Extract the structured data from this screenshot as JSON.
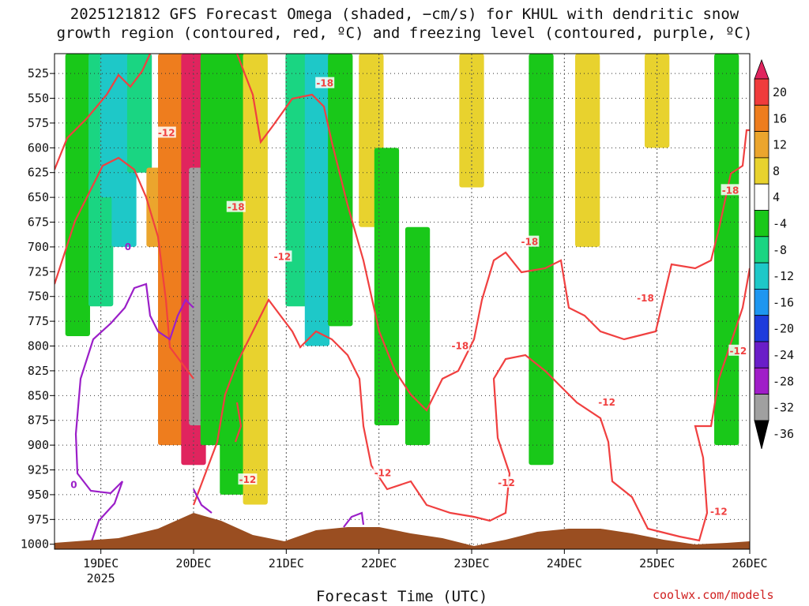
{
  "title": {
    "line1": "2025121812 GFS Forecast Omega (shaded, −cm/s) for KHUL with dendritic snow",
    "line2": "growth region (contoured, red, ºC) and freezing level (contoured, purple, ºC)"
  },
  "credit": "coolwx.com/models",
  "chart_data": {
    "type": "heatmap",
    "xlabel": "Forecast Time (UTC)",
    "ylabel": "",
    "x_ticks": [
      "19DEC",
      "20DEC",
      "21DEC",
      "22DEC",
      "23DEC",
      "24DEC",
      "25DEC",
      "26DEC"
    ],
    "x_year_label": "2025",
    "xlim": [
      "2025-12-18T12",
      "2025-12-26T00"
    ],
    "y_ticks": [
      525,
      550,
      575,
      600,
      625,
      650,
      675,
      700,
      725,
      750,
      775,
      800,
      825,
      850,
      875,
      900,
      925,
      950,
      975,
      1000
    ],
    "ylim": [
      1005,
      505
    ],
    "y_units": "hPa",
    "grid": true,
    "colorbar": {
      "levels": [
        20,
        16,
        12,
        8,
        4,
        -4,
        -8,
        -12,
        -16,
        -20,
        -24,
        -28,
        -32,
        -36
      ],
      "colors": [
        "#e0245e",
        "#f03c3c",
        "#ee7d1e",
        "#eba52d",
        "#e8d22e",
        "#ffffff",
        "#19c819",
        "#1ad582",
        "#1ec8c8",
        "#1e96f0",
        "#1e3cdc",
        "#6a1ec8",
        "#a01ec8",
        "#a0a0a0",
        "#000000"
      ]
    },
    "shading": [
      {
        "x": "2025-12-18T18",
        "p_top": 505,
        "p_bot": 790,
        "omega": -6
      },
      {
        "x": "2025-12-19T00",
        "p_top": 505,
        "p_bot": 760,
        "omega": -10
      },
      {
        "x": "2025-12-19T03",
        "p_top": 505,
        "p_bot": 650,
        "omega": -14
      },
      {
        "x": "2025-12-19T06",
        "p_top": 505,
        "p_bot": 700,
        "omega": -16
      },
      {
        "x": "2025-12-19T10",
        "p_top": 505,
        "p_bot": 625,
        "omega": -12
      },
      {
        "x": "2025-12-19T15",
        "p_top": 620,
        "p_bot": 700,
        "omega": 10
      },
      {
        "x": "2025-12-19T18",
        "p_top": 505,
        "p_bot": 900,
        "omega": 14
      },
      {
        "x": "2025-12-20T00",
        "p_top": 505,
        "p_bot": 920,
        "omega": 20
      },
      {
        "x": "2025-12-20T02",
        "p_top": 620,
        "p_bot": 880,
        "omega": -36
      },
      {
        "x": "2025-12-20T05",
        "p_top": 505,
        "p_bot": 900,
        "omega": -8
      },
      {
        "x": "2025-12-20T10",
        "p_top": 505,
        "p_bot": 950,
        "omega": -8
      },
      {
        "x": "2025-12-20T16",
        "p_top": 505,
        "p_bot": 960,
        "omega": 6
      },
      {
        "x": "2025-12-21T03",
        "p_top": 505,
        "p_bot": 760,
        "omega": -10
      },
      {
        "x": "2025-12-21T08",
        "p_top": 505,
        "p_bot": 800,
        "omega": -14
      },
      {
        "x": "2025-12-21T14",
        "p_top": 505,
        "p_bot": 780,
        "omega": -8
      },
      {
        "x": "2025-12-21T22",
        "p_top": 505,
        "p_bot": 680,
        "omega": 5
      },
      {
        "x": "2025-12-22T02",
        "p_top": 600,
        "p_bot": 880,
        "omega": -8
      },
      {
        "x": "2025-12-22T10",
        "p_top": 680,
        "p_bot": 900,
        "omega": -8
      },
      {
        "x": "2025-12-23T00",
        "p_top": 505,
        "p_bot": 640,
        "omega": 5
      },
      {
        "x": "2025-12-23T18",
        "p_top": 505,
        "p_bot": 920,
        "omega": -8
      },
      {
        "x": "2025-12-24T06",
        "p_top": 505,
        "p_bot": 700,
        "omega": 5
      },
      {
        "x": "2025-12-25T00",
        "p_top": 505,
        "p_bot": 600,
        "omega": 5
      },
      {
        "x": "2025-12-25T18",
        "p_top": 505,
        "p_bot": 900,
        "omega": -8
      }
    ],
    "contours": {
      "dendritic_red": [
        {
          "label": "-12",
          "level": -12
        },
        {
          "label": "-18",
          "level": -18
        }
      ],
      "freezing_purple": [
        {
          "label": "0",
          "level": 0
        }
      ]
    },
    "red_contour_labels": [
      {
        "text": "-12",
        "x": "2025-12-19T17",
        "p": 585
      },
      {
        "text": "-18",
        "x": "2025-12-21T10",
        "p": 535
      },
      {
        "text": "-18",
        "x": "2025-12-20T11",
        "p": 660
      },
      {
        "text": "-12",
        "x": "2025-12-20T23",
        "p": 710
      },
      {
        "text": "-18",
        "x": "2025-12-22T21",
        "p": 800
      },
      {
        "text": "-18",
        "x": "2025-12-23T15",
        "p": 695
      },
      {
        "text": "-18",
        "x": "2025-12-24T21",
        "p": 752
      },
      {
        "text": "-18",
        "x": "2025-12-25T19",
        "p": 643
      },
      {
        "text": "-12",
        "x": "2025-12-25T21",
        "p": 805
      },
      {
        "text": "-12",
        "x": "2025-12-24T11",
        "p": 857
      },
      {
        "text": "-12",
        "x": "2025-12-20T14",
        "p": 935
      },
      {
        "text": "-12",
        "x": "2025-12-22T01",
        "p": 928
      },
      {
        "text": "-12",
        "x": "2025-12-23T09",
        "p": 938
      },
      {
        "text": "-12",
        "x": "2025-12-25T16",
        "p": 967
      }
    ],
    "purple_contour_labels": [
      {
        "text": "0",
        "x": "2025-12-19T07",
        "p": 700
      },
      {
        "text": "0",
        "x": "2025-12-18T17",
        "p": 940
      }
    ],
    "terrain_color": "#9a4e21",
    "red_color": "#f04040",
    "purple_color": "#9b1fc8"
  }
}
